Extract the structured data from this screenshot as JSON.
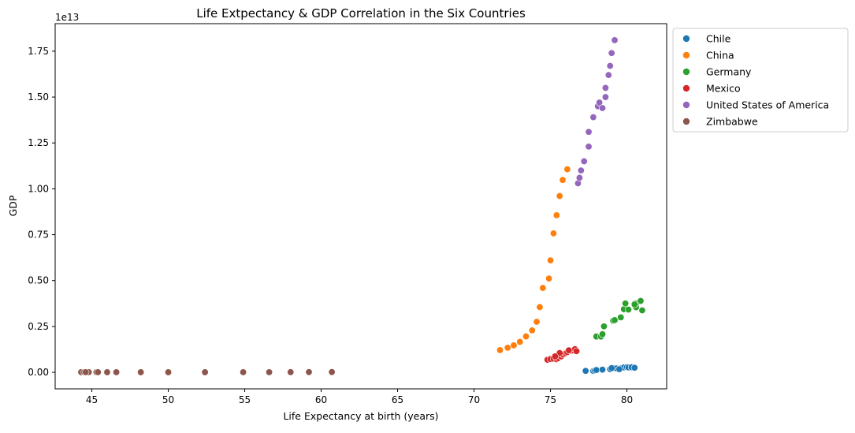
{
  "chart_data": {
    "type": "scatter",
    "title": "Life Extpectancy & GDP Correlation in the Six Countries",
    "xlabel": "Life Expectancy at birth (years)",
    "ylabel": "GDP",
    "offset_label": "1e13",
    "xlim": [
      42.6,
      82.6
    ],
    "ylim": [
      -0.09,
      1.9
    ],
    "y_scale": 10000000000000.0,
    "x_ticks": [
      45,
      50,
      55,
      60,
      65,
      70,
      75,
      80
    ],
    "x_tick_labels": [
      "45",
      "50",
      "55",
      "60",
      "65",
      "70",
      "75",
      "80"
    ],
    "y_ticks": [
      0,
      0.25,
      0.5,
      0.75,
      1.0,
      1.25,
      1.5,
      1.75
    ],
    "y_tick_labels": [
      "0.00",
      "0.25",
      "0.50",
      "0.75",
      "1.00",
      "1.25",
      "1.50",
      "1.75"
    ],
    "grid": false,
    "legend_position": "outside-right-top",
    "series": [
      {
        "name": "Chile",
        "color": "#1f77b4",
        "x": [
          77.3,
          77.8,
          77.9,
          78.0,
          78.4,
          78.9,
          79.1,
          79.3,
          79.6,
          79.8,
          80.0,
          80.1,
          80.3,
          80.5,
          79.5,
          79.0
        ],
        "y": [
          0.0078,
          0.0071,
          0.01,
          0.0127,
          0.0146,
          0.0172,
          0.023,
          0.0212,
          0.0217,
          0.0267,
          0.0279,
          0.0265,
          0.0277,
          0.025,
          0.017,
          0.023
        ]
      },
      {
        "name": "China",
        "color": "#ff7f0e",
        "x": [
          71.7,
          72.2,
          72.6,
          73.0,
          73.4,
          73.8,
          74.1,
          74.3,
          74.5,
          74.9,
          75.0,
          75.2,
          75.4,
          75.6,
          75.8,
          76.1
        ],
        "y": [
          0.1211,
          0.1339,
          0.1471,
          0.166,
          0.1955,
          0.2286,
          0.2752,
          0.3552,
          0.4598,
          0.511,
          0.61,
          0.7572,
          0.8561,
          0.9607,
          1.0482,
          1.1065
        ]
      },
      {
        "name": "Germany",
        "color": "#2ca02c",
        "x": [
          78.0,
          78.3,
          78.4,
          78.5,
          79.1,
          79.2,
          79.6,
          79.8,
          79.9,
          80.1,
          80.5,
          80.6,
          80.6,
          80.9,
          81.0,
          80.5
        ],
        "y": [
          0.195,
          0.195,
          0.2079,
          0.2505,
          0.2814,
          0.2846,
          0.2995,
          0.3439,
          0.3752,
          0.3418,
          0.3745,
          0.3544,
          0.3753,
          0.389,
          0.3375,
          0.37
        ]
      },
      {
        "name": "Mexico",
        "color": "#d62728",
        "x": [
          74.8,
          75.0,
          75.2,
          75.4,
          75.5,
          75.7,
          75.8,
          76.0,
          76.1,
          76.3,
          76.5,
          76.6,
          76.7,
          75.6,
          75.3,
          76.2
        ],
        "y": [
          0.0684,
          0.0724,
          0.0741,
          0.0713,
          0.077,
          0.0866,
          0.0966,
          0.1043,
          0.11,
          0.117,
          0.119,
          0.1262,
          0.1151,
          0.105,
          0.087,
          0.12
        ]
      },
      {
        "name": "United States of America",
        "color": "#9467bd",
        "x": [
          76.8,
          76.9,
          77.0,
          77.2,
          77.5,
          77.5,
          77.8,
          78.1,
          78.2,
          78.4,
          78.6,
          78.6,
          78.8,
          79.0,
          79.2,
          78.9
        ],
        "y": [
          1.03,
          1.06,
          1.1,
          1.15,
          1.23,
          1.31,
          1.39,
          1.45,
          1.47,
          1.44,
          1.5,
          1.55,
          1.62,
          1.74,
          1.81,
          1.67
        ]
      },
      {
        "name": "Zimbabwe",
        "color": "#8c564b",
        "x": [
          44.3,
          44.5,
          44.8,
          45.3,
          45.4,
          46.0,
          46.6,
          48.2,
          50.0,
          52.4,
          54.9,
          56.6,
          58.0,
          59.2,
          60.7,
          44.6
        ],
        "y": [
          0.00068,
          0.00064,
          0.00068,
          0.00055,
          0.00059,
          0.00056,
          0.0006,
          0.00053,
          0.00054,
          0.00055,
          0.0006,
          0.00074,
          0.001,
          0.0012,
          0.0016,
          0.0007
        ]
      }
    ]
  }
}
